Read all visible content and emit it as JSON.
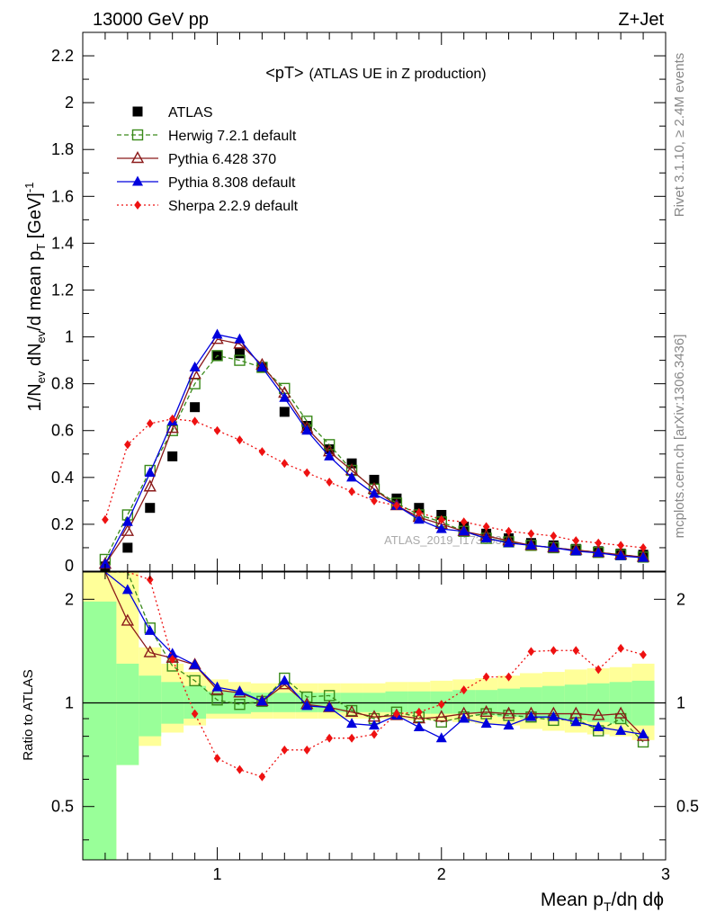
{
  "header": {
    "left": "13000 GeV pp",
    "right": "Z+Jet",
    "title_main": "<pT>",
    "title_sub": "(ATLAS UE in Z production)",
    "side_top": "Rivet 3.1.10, ≥ 2.4M events",
    "side_bottom": "mcplots.cern.ch [arXiv:1306.3436]",
    "analysis": "ATLAS_2019_I1736531"
  },
  "axes": {
    "ylabel_upper": "1/N_ev dN_ev/d mean p_T [GeV]^-1",
    "ylabel_lower": "Ratio to ATLAS",
    "xlabel": "Mean p_T/dη dϕ",
    "upper_ticks": [
      "0",
      "0.2",
      "0.4",
      "0.6",
      "0.8",
      "1",
      "1.2",
      "1.4",
      "1.6",
      "1.8",
      "2",
      "2.2"
    ],
    "lower_ticks": [
      "0.5",
      "1",
      "2"
    ],
    "x_ticks": [
      "1",
      "2",
      "3"
    ]
  },
  "colors": {
    "data": "#000000",
    "herwig": "#3a8a1a",
    "pythia6": "#8b1a1a",
    "pythia8": "#0000dd",
    "sherpa": "#ee1111",
    "band_inner": "#99ff99",
    "band_outer": "#ffff99"
  },
  "chart_data": {
    "type": "scatter",
    "xlim": [
      0.4,
      3.0
    ],
    "ylim_upper": [
      0,
      2.3
    ],
    "ylim_lower": [
      0.35,
      2.4
    ],
    "lower_scale": "log",
    "grid": false,
    "legend_position": "top-left",
    "x": [
      0.5,
      0.6,
      0.7,
      0.8,
      0.9,
      1.0,
      1.1,
      1.2,
      1.3,
      1.4,
      1.5,
      1.6,
      1.7,
      1.8,
      1.9,
      2.0,
      2.1,
      2.2,
      2.3,
      2.4,
      2.5,
      2.6,
      2.7,
      2.8,
      2.9
    ],
    "series": [
      {
        "name": "ATLAS",
        "key": "data",
        "marker": "square",
        "values": [
          0.02,
          0.1,
          0.27,
          0.49,
          0.7,
          0.92,
          0.93,
          0.87,
          0.68,
          0.62,
          0.52,
          0.46,
          0.39,
          0.31,
          0.27,
          0.24,
          0.19,
          0.16,
          0.14,
          0.12,
          0.11,
          0.095,
          0.085,
          0.075,
          0.07
        ]
      },
      {
        "name": "Herwig 7.2.1 default",
        "key": "herwig",
        "marker": "open-square",
        "values": [
          0.05,
          0.24,
          0.43,
          0.6,
          0.8,
          0.92,
          0.9,
          0.87,
          0.78,
          0.64,
          0.54,
          0.43,
          0.35,
          0.29,
          0.24,
          0.21,
          0.17,
          0.14,
          0.125,
          0.11,
          0.1,
          0.09,
          0.08,
          0.07,
          0.06
        ]
      },
      {
        "name": "Pythia 6.428 370",
        "key": "pythia6",
        "marker": "open-triangle",
        "values": [
          0.03,
          0.17,
          0.36,
          0.61,
          0.84,
          0.99,
          0.97,
          0.88,
          0.76,
          0.61,
          0.51,
          0.43,
          0.35,
          0.28,
          0.23,
          0.2,
          0.17,
          0.15,
          0.13,
          0.11,
          0.1,
          0.09,
          0.08,
          0.07,
          0.06
        ]
      },
      {
        "name": "Pythia 8.308 default",
        "key": "pythia8",
        "marker": "triangle",
        "values": [
          0.03,
          0.21,
          0.42,
          0.64,
          0.87,
          1.01,
          0.99,
          0.87,
          0.74,
          0.6,
          0.49,
          0.4,
          0.33,
          0.28,
          0.22,
          0.18,
          0.17,
          0.14,
          0.12,
          0.11,
          0.1,
          0.085,
          0.078,
          0.065,
          0.057
        ]
      },
      {
        "name": "Sherpa 2.2.9 default",
        "key": "sherpa",
        "marker": "diamond",
        "values": [
          0.22,
          0.54,
          0.63,
          0.65,
          0.64,
          0.6,
          0.56,
          0.51,
          0.46,
          0.42,
          0.38,
          0.34,
          0.3,
          0.28,
          0.25,
          0.22,
          0.21,
          0.19,
          0.17,
          0.16,
          0.15,
          0.13,
          0.12,
          0.11,
          0.1
        ]
      }
    ],
    "ratios": {
      "herwig": [
        2.4,
        2.4,
        1.65,
        1.28,
        1.16,
        1.02,
        0.99,
        1.01,
        1.18,
        1.04,
        1.05,
        0.95,
        0.9,
        0.94,
        0.91,
        0.88,
        0.91,
        0.93,
        0.92,
        0.91,
        0.89,
        0.9,
        0.83,
        0.9,
        0.77
      ],
      "pythia6": [
        2.4,
        1.73,
        1.4,
        1.35,
        1.29,
        1.09,
        1.07,
        1.01,
        1.13,
        0.99,
        0.97,
        0.94,
        0.91,
        0.92,
        0.9,
        0.91,
        0.93,
        0.94,
        0.93,
        0.93,
        0.93,
        0.93,
        0.92,
        0.93,
        0.8
      ],
      "pythia8": [
        2.4,
        2.13,
        1.62,
        1.39,
        1.29,
        1.11,
        1.08,
        1.01,
        1.16,
        0.98,
        0.97,
        0.87,
        0.86,
        0.92,
        0.85,
        0.79,
        0.9,
        0.87,
        0.86,
        0.91,
        0.91,
        0.88,
        0.85,
        0.83,
        0.81
      ],
      "sherpa": [
        2.4,
        2.4,
        2.28,
        1.34,
        0.93,
        0.69,
        0.64,
        0.61,
        0.73,
        0.73,
        0.79,
        0.79,
        0.81,
        0.93,
        0.94,
        0.99,
        1.09,
        1.19,
        1.19,
        1.41,
        1.42,
        1.42,
        1.25,
        1.44,
        1.38
      ]
    },
    "band_edges": [
      0.4,
      0.55,
      0.65,
      0.75,
      0.85,
      0.95,
      1.05,
      1.15,
      1.25,
      1.35,
      1.45,
      1.55,
      1.65,
      1.75,
      1.85,
      1.95,
      2.05,
      2.15,
      2.25,
      2.35,
      2.45,
      2.55,
      2.65,
      2.75,
      2.85,
      2.95
    ],
    "band_inner": [
      [
        0.35,
        1.97
      ],
      [
        0.66,
        1.3
      ],
      [
        0.8,
        1.2
      ],
      [
        0.87,
        1.15
      ],
      [
        0.9,
        1.12
      ],
      [
        0.93,
        1.08
      ],
      [
        0.93,
        1.08
      ],
      [
        0.94,
        1.07
      ],
      [
        0.94,
        1.07
      ],
      [
        0.94,
        1.07
      ],
      [
        0.94,
        1.07
      ],
      [
        0.94,
        1.07
      ],
      [
        0.94,
        1.07
      ],
      [
        0.94,
        1.08
      ],
      [
        0.93,
        1.08
      ],
      [
        0.93,
        1.08
      ],
      [
        0.93,
        1.09
      ],
      [
        0.92,
        1.09
      ],
      [
        0.91,
        1.1
      ],
      [
        0.9,
        1.11
      ],
      [
        0.9,
        1.12
      ],
      [
        0.89,
        1.13
      ],
      [
        0.88,
        1.14
      ],
      [
        0.87,
        1.15
      ],
      [
        0.86,
        1.16
      ]
    ],
    "band_outer": [
      [
        0.35,
        2.4
      ],
      [
        0.66,
        2.4
      ],
      [
        0.75,
        1.45
      ],
      [
        0.82,
        1.3
      ],
      [
        0.86,
        1.23
      ],
      [
        0.9,
        1.17
      ],
      [
        0.9,
        1.15
      ],
      [
        0.9,
        1.14
      ],
      [
        0.9,
        1.14
      ],
      [
        0.9,
        1.14
      ],
      [
        0.9,
        1.14
      ],
      [
        0.9,
        1.14
      ],
      [
        0.9,
        1.14
      ],
      [
        0.9,
        1.15
      ],
      [
        0.89,
        1.15
      ],
      [
        0.89,
        1.16
      ],
      [
        0.88,
        1.17
      ],
      [
        0.87,
        1.18
      ],
      [
        0.86,
        1.2
      ],
      [
        0.84,
        1.22
      ],
      [
        0.83,
        1.23
      ],
      [
        0.82,
        1.25
      ],
      [
        0.81,
        1.26
      ],
      [
        0.8,
        1.27
      ],
      [
        0.78,
        1.3
      ]
    ]
  }
}
